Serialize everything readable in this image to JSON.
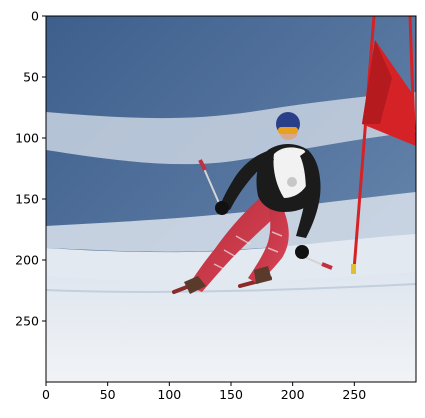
{
  "axes": {
    "x_ticks": [
      {
        "value": 0,
        "label": "0"
      },
      {
        "value": 50,
        "label": "50"
      },
      {
        "value": 100,
        "label": "100"
      },
      {
        "value": 150,
        "label": "150"
      },
      {
        "value": 200,
        "label": "200"
      },
      {
        "value": 250,
        "label": "250"
      }
    ],
    "y_ticks": [
      {
        "value": 0,
        "label": "0"
      },
      {
        "value": 50,
        "label": "50"
      },
      {
        "value": 100,
        "label": "100"
      },
      {
        "value": 150,
        "label": "150"
      },
      {
        "value": 200,
        "label": "200"
      },
      {
        "value": 250,
        "label": "250"
      }
    ],
    "x_range": [
      0,
      300
    ],
    "y_range": [
      0,
      300
    ],
    "y_inverted": true,
    "grid": false
  },
  "image": {
    "subject": "skier-racing-photo",
    "colors": {
      "sky_shadow": "#4f6f96",
      "snow_light": "#e8edf3",
      "snow_shadow": "#8aa2c0",
      "race_suit": "#c2303f",
      "jacket": "#1b1b1b",
      "bib": "#f2f2f2",
      "helmet": "#2a3f8a",
      "gate_flag": "#d42226",
      "gate_pole": "#d42226",
      "pole_tip": "#e0c030"
    }
  }
}
